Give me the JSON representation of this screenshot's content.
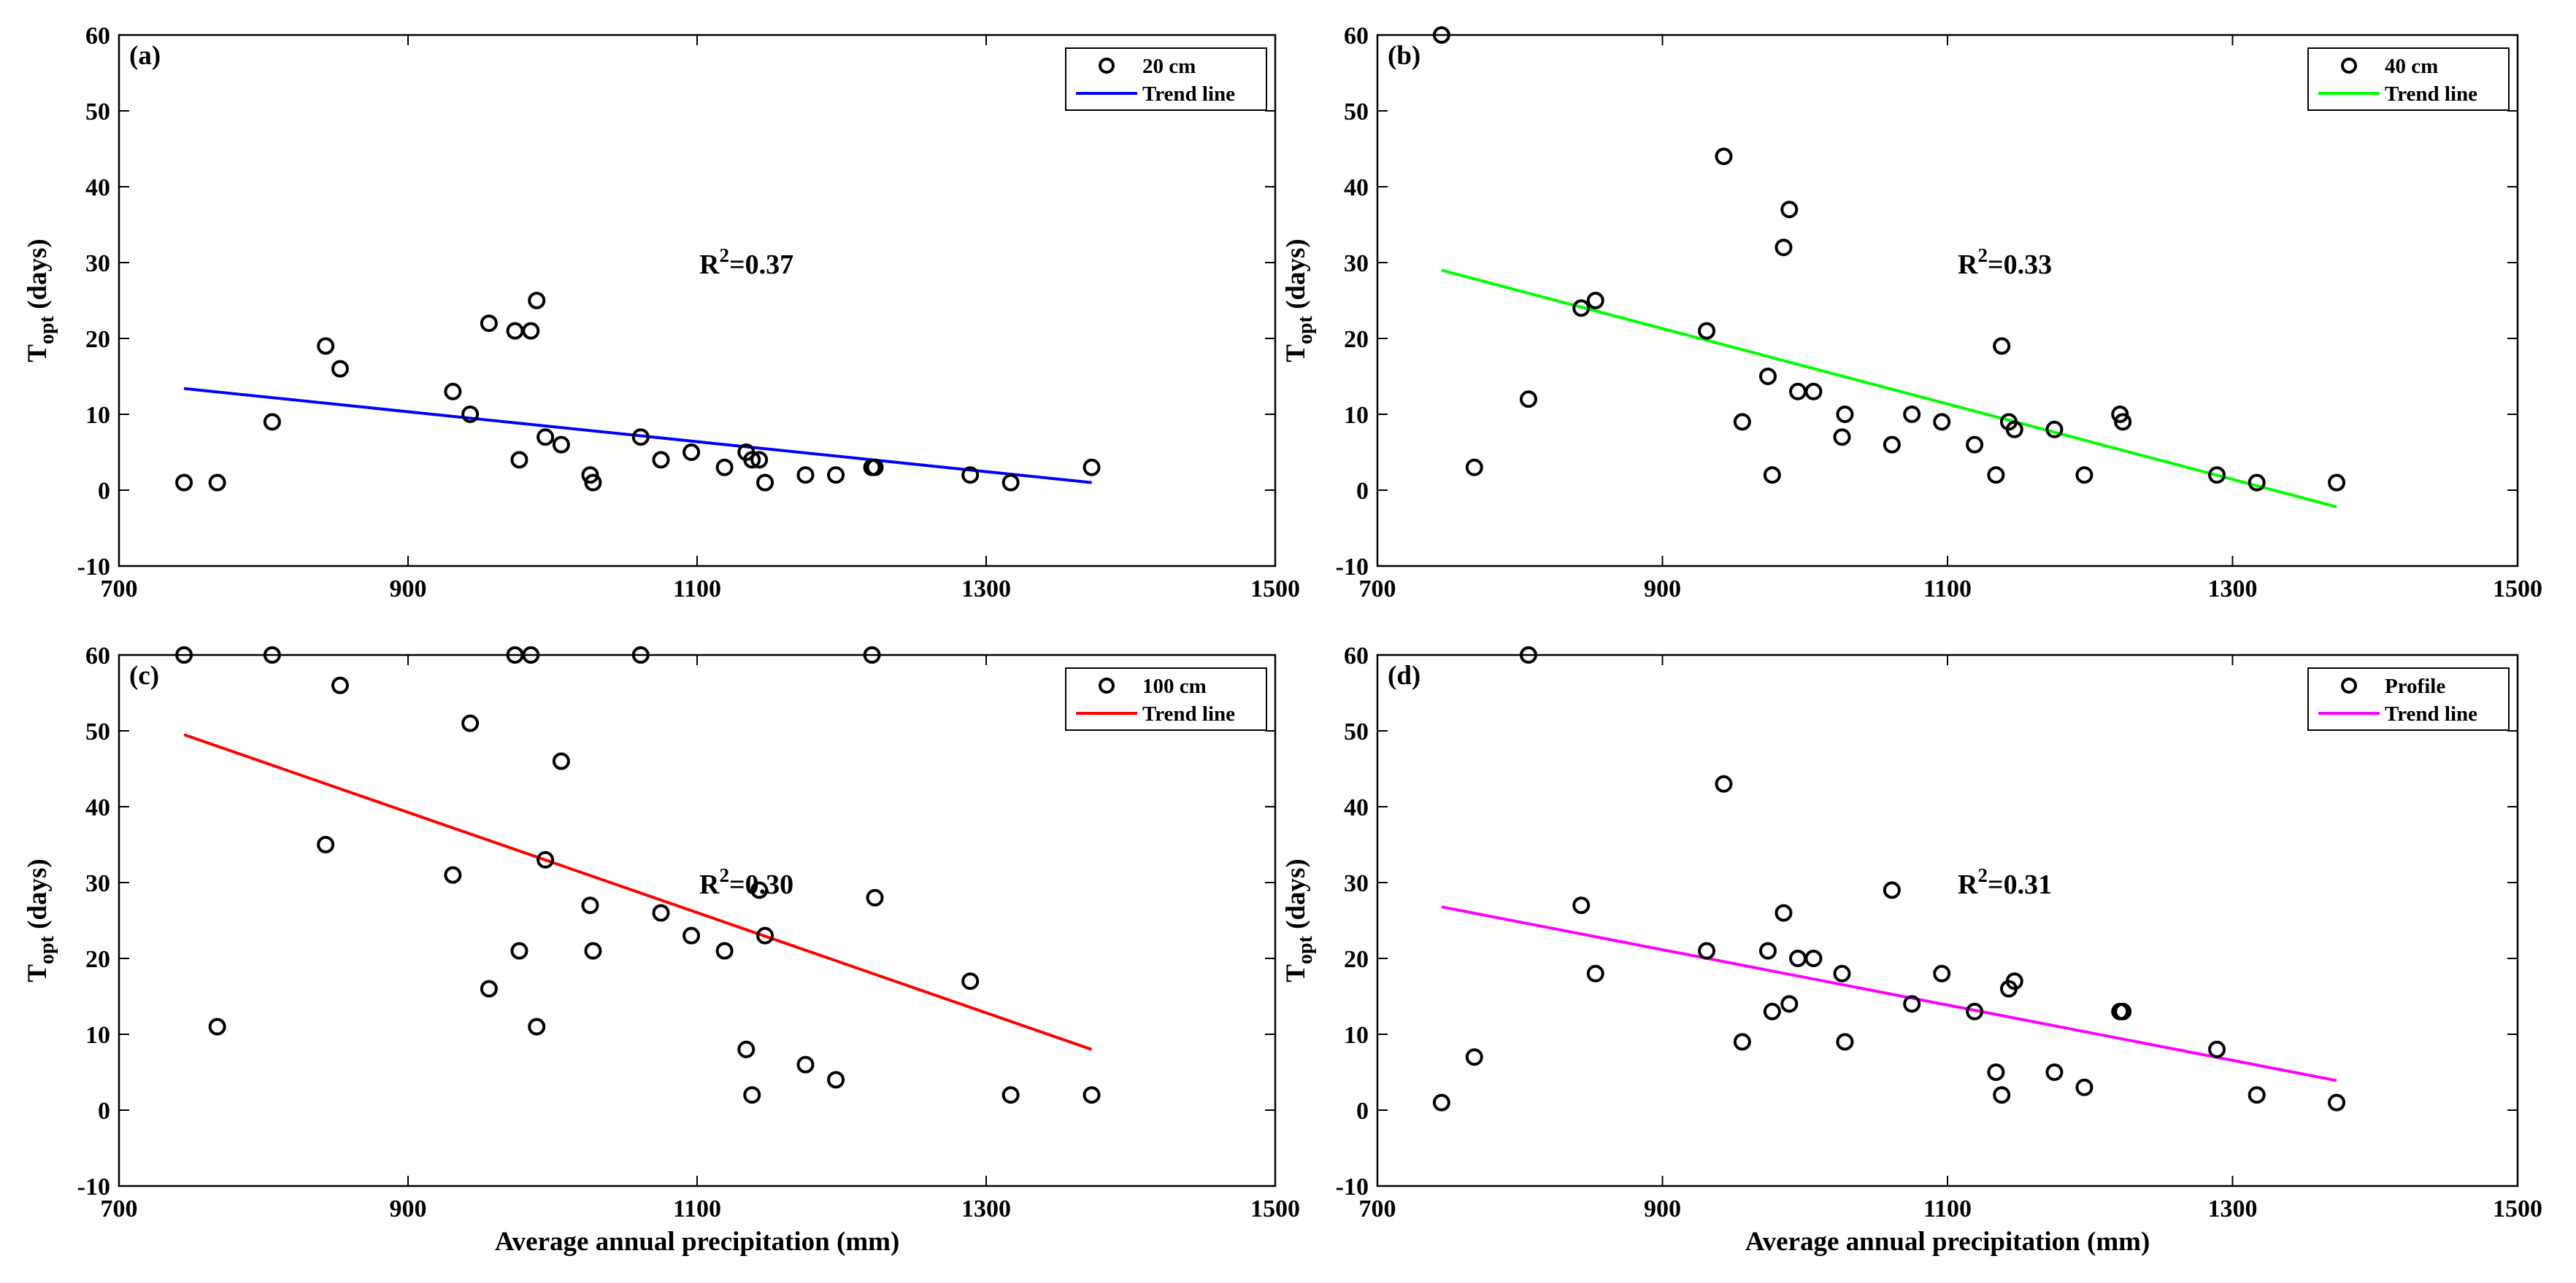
{
  "chart_data": [
    {
      "type": "scatter",
      "panel_label": "(a)",
      "series": [
        {
          "name": "20 cm",
          "marker": "circle",
          "points": [
            [
              745,
              1
            ],
            [
              768,
              1
            ],
            [
              806,
              9
            ],
            [
              843,
              19
            ],
            [
              853,
              16
            ],
            [
              931,
              13
            ],
            [
              943,
              10
            ],
            [
              956,
              22
            ],
            [
              974,
              21
            ],
            [
              977,
              4
            ],
            [
              985,
              21
            ],
            [
              989,
              25
            ],
            [
              995,
              7
            ],
            [
              1006,
              6
            ],
            [
              1026,
              2
            ],
            [
              1028,
              1
            ],
            [
              1061,
              7
            ],
            [
              1075,
              4
            ],
            [
              1096,
              5
            ],
            [
              1119,
              3
            ],
            [
              1134,
              5
            ],
            [
              1138,
              4
            ],
            [
              1143,
              4
            ],
            [
              1147,
              1
            ],
            [
              1175,
              2
            ],
            [
              1196,
              2
            ],
            [
              1221,
              3
            ],
            [
              1223,
              3
            ],
            [
              1289,
              2
            ],
            [
              1317,
              1
            ],
            [
              1373,
              3
            ]
          ]
        },
        {
          "name": "Trend line",
          "line": [
            [
              745,
              13.4
            ],
            [
              1373,
              1.0
            ]
          ]
        }
      ],
      "xlabel": "",
      "ylabel_main": "T",
      "ylabel_sub": "opt",
      "ylabel_tail": " (days)",
      "xlim": [
        700,
        1500
      ],
      "ylim": [
        -10,
        60
      ],
      "xticks": [
        700,
        900,
        1100,
        1300,
        1500
      ],
      "yticks": [
        -10,
        0,
        10,
        20,
        30,
        40,
        50,
        60
      ],
      "annotation": {
        "prefix": "R",
        "sup": "2",
        "value": "=0.37"
      },
      "legend_position": "top-right",
      "colors": {
        "trend": "#0000ff",
        "marker": "#000000"
      }
    },
    {
      "type": "scatter",
      "panel_label": "(b)",
      "series": [
        {
          "name": "40 cm",
          "marker": "circle",
          "points": [
            [
              745,
              60
            ],
            [
              768,
              3
            ],
            [
              806,
              12
            ],
            [
              843,
              24
            ],
            [
              853,
              25
            ],
            [
              931,
              21
            ],
            [
              943,
              44
            ],
            [
              956,
              9
            ],
            [
              974,
              15
            ],
            [
              977,
              2
            ],
            [
              985,
              32
            ],
            [
              989,
              37
            ],
            [
              995,
              13
            ],
            [
              1006,
              13
            ],
            [
              1026,
              7
            ],
            [
              1028,
              10
            ],
            [
              1061,
              6
            ],
            [
              1075,
              10
            ],
            [
              1096,
              9
            ],
            [
              1119,
              6
            ],
            [
              1134,
              2
            ],
            [
              1138,
              19
            ],
            [
              1143,
              9
            ],
            [
              1147,
              8
            ],
            [
              1175,
              8
            ],
            [
              1196,
              2
            ],
            [
              1221,
              10
            ],
            [
              1223,
              9
            ],
            [
              1289,
              2
            ],
            [
              1317,
              1
            ],
            [
              1373,
              1
            ]
          ]
        },
        {
          "name": "Trend line",
          "line": [
            [
              745,
              29.0
            ],
            [
              1373,
              -2.2
            ]
          ]
        }
      ],
      "xlabel": "",
      "ylabel_main": "T",
      "ylabel_sub": "opt",
      "ylabel_tail": " (days)",
      "xlim": [
        700,
        1500
      ],
      "ylim": [
        -10,
        60
      ],
      "xticks": [
        700,
        900,
        1100,
        1300,
        1500
      ],
      "yticks": [
        -10,
        0,
        10,
        20,
        30,
        40,
        50,
        60
      ],
      "annotation": {
        "prefix": "R",
        "sup": "2",
        "value": "=0.33"
      },
      "legend_position": "top-right",
      "colors": {
        "trend": "#00ff00",
        "marker": "#000000"
      }
    },
    {
      "type": "scatter",
      "panel_label": "(c)",
      "series": [
        {
          "name": "100 cm",
          "marker": "circle",
          "points": [
            [
              745,
              60
            ],
            [
              768,
              11
            ],
            [
              806,
              60
            ],
            [
              843,
              35
            ],
            [
              853,
              56
            ],
            [
              931,
              31
            ],
            [
              943,
              51
            ],
            [
              956,
              16
            ],
            [
              974,
              60
            ],
            [
              977,
              21
            ],
            [
              985,
              60
            ],
            [
              989,
              11
            ],
            [
              995,
              33
            ],
            [
              1006,
              46
            ],
            [
              1026,
              27
            ],
            [
              1028,
              21
            ],
            [
              1061,
              60
            ],
            [
              1075,
              26
            ],
            [
              1096,
              23
            ],
            [
              1119,
              21
            ],
            [
              1134,
              8
            ],
            [
              1138,
              2
            ],
            [
              1143,
              29
            ],
            [
              1147,
              23
            ],
            [
              1175,
              6
            ],
            [
              1196,
              4
            ],
            [
              1221,
              60
            ],
            [
              1223,
              28
            ],
            [
              1289,
              17
            ],
            [
              1317,
              2
            ],
            [
              1373,
              2
            ]
          ]
        },
        {
          "name": "Trend line",
          "line": [
            [
              745,
              49.5
            ],
            [
              1373,
              8.0
            ]
          ]
        }
      ],
      "xlabel": "Average annual precipitation (mm)",
      "ylabel_main": "T",
      "ylabel_sub": "opt",
      "ylabel_tail": " (days)",
      "xlim": [
        700,
        1500
      ],
      "ylim": [
        -10,
        60
      ],
      "xticks": [
        700,
        900,
        1100,
        1300,
        1500
      ],
      "yticks": [
        -10,
        0,
        10,
        20,
        30,
        40,
        50,
        60
      ],
      "annotation": {
        "prefix": "R",
        "sup": "2",
        "value": "=0.30"
      },
      "legend_position": "top-right",
      "colors": {
        "trend": "#ff0000",
        "marker": "#000000"
      }
    },
    {
      "type": "scatter",
      "panel_label": "(d)",
      "series": [
        {
          "name": "Profile",
          "marker": "circle",
          "points": [
            [
              745,
              1
            ],
            [
              768,
              7
            ],
            [
              806,
              60
            ],
            [
              843,
              27
            ],
            [
              853,
              18
            ],
            [
              931,
              21
            ],
            [
              943,
              43
            ],
            [
              956,
              9
            ],
            [
              974,
              21
            ],
            [
              977,
              13
            ],
            [
              985,
              26
            ],
            [
              989,
              14
            ],
            [
              995,
              20
            ],
            [
              1006,
              20
            ],
            [
              1026,
              18
            ],
            [
              1028,
              9
            ],
            [
              1061,
              29
            ],
            [
              1075,
              14
            ],
            [
              1096,
              18
            ],
            [
              1119,
              13
            ],
            [
              1134,
              5
            ],
            [
              1138,
              2
            ],
            [
              1143,
              16
            ],
            [
              1147,
              17
            ],
            [
              1175,
              5
            ],
            [
              1196,
              3
            ],
            [
              1221,
              13
            ],
            [
              1223,
              13
            ],
            [
              1289,
              8
            ],
            [
              1317,
              2
            ],
            [
              1373,
              1
            ]
          ]
        },
        {
          "name": "Trend line",
          "line": [
            [
              745,
              26.8
            ],
            [
              1373,
              3.9
            ]
          ]
        }
      ],
      "xlabel": "Average annual precipitation (mm)",
      "ylabel_main": "T",
      "ylabel_sub": "opt",
      "ylabel_tail": " (days)",
      "xlim": [
        700,
        1500
      ],
      "ylim": [
        -10,
        60
      ],
      "xticks": [
        700,
        900,
        1100,
        1300,
        1500
      ],
      "yticks": [
        -10,
        0,
        10,
        20,
        30,
        40,
        50,
        60
      ],
      "annotation": {
        "prefix": "R",
        "sup": "2",
        "value": "=0.31"
      },
      "legend_position": "top-right",
      "colors": {
        "trend": "#ff00ff",
        "marker": "#000000"
      }
    }
  ]
}
